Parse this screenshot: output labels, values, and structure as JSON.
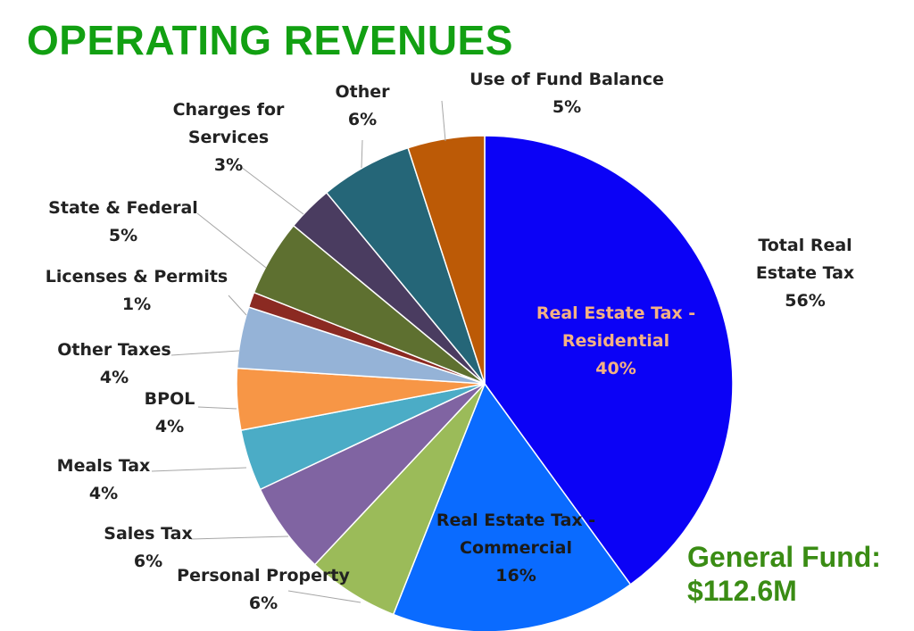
{
  "title": "OPERATING REVENUES",
  "footer": {
    "line1": "General Fund:",
    "line2": "$112.6M"
  },
  "group_label": {
    "lines": [
      "Total Real",
      "Estate Tax"
    ],
    "pct": "56%"
  },
  "chart_data": {
    "type": "pie",
    "title": "OPERATING REVENUES",
    "start_angle_deg": 0,
    "direction": "clockwise",
    "slices": [
      {
        "name": "Real Estate Tax - Residential",
        "value": 40,
        "label": "40%",
        "color": "#0b02f6",
        "label_lines": [
          "Real Estate Tax -",
          "Residential"
        ],
        "label_color": "#f4b183",
        "label_inside": true
      },
      {
        "name": "Real Estate Tax - Commercial",
        "value": 16,
        "label": "16%",
        "color": "#0a6bff",
        "label_lines": [
          "Real Estate Tax -",
          "Commercial"
        ],
        "label_color": "#1a1a1a",
        "label_inside": true
      },
      {
        "name": "Personal Property",
        "value": 6,
        "label": "6%",
        "color": "#9bbb59",
        "label_lines": [
          "Personal Property"
        ],
        "label_inside": false
      },
      {
        "name": "Sales Tax",
        "value": 6,
        "label": "6%",
        "color": "#8064a2",
        "label_lines": [
          "Sales Tax"
        ],
        "label_inside": false
      },
      {
        "name": "Meals Tax",
        "value": 4,
        "label": "4%",
        "color": "#4bacc6",
        "label_lines": [
          "Meals Tax"
        ],
        "label_inside": false
      },
      {
        "name": "BPOL",
        "value": 4,
        "label": "4%",
        "color": "#f79646",
        "label_lines": [
          "BPOL"
        ],
        "label_inside": false
      },
      {
        "name": "Other Taxes",
        "value": 4,
        "label": "4%",
        "color": "#95b3d7",
        "label_lines": [
          "Other Taxes"
        ],
        "label_inside": false
      },
      {
        "name": "Licenses & Permits",
        "value": 1,
        "label": "1%",
        "color": "#8b2a22",
        "label_lines": [
          "Licenses & Permits"
        ],
        "label_inside": false
      },
      {
        "name": "State & Federal",
        "value": 5,
        "label": "5%",
        "color": "#5e7030",
        "label_lines": [
          "State & Federal"
        ],
        "label_inside": false
      },
      {
        "name": "Charges for Services",
        "value": 3,
        "label": "3%",
        "color": "#4a3c60",
        "label_lines": [
          "Charges for",
          "Services"
        ],
        "label_inside": false
      },
      {
        "name": "Other",
        "value": 6,
        "label": "6%",
        "color": "#256678",
        "label_lines": [
          "Other"
        ],
        "label_inside": false
      },
      {
        "name": "Use of Fund Balance",
        "value": 5,
        "label": "5%",
        "color": "#bc5a06",
        "label_lines": [
          "Use of Fund Balance"
        ],
        "label_inside": false
      }
    ]
  }
}
